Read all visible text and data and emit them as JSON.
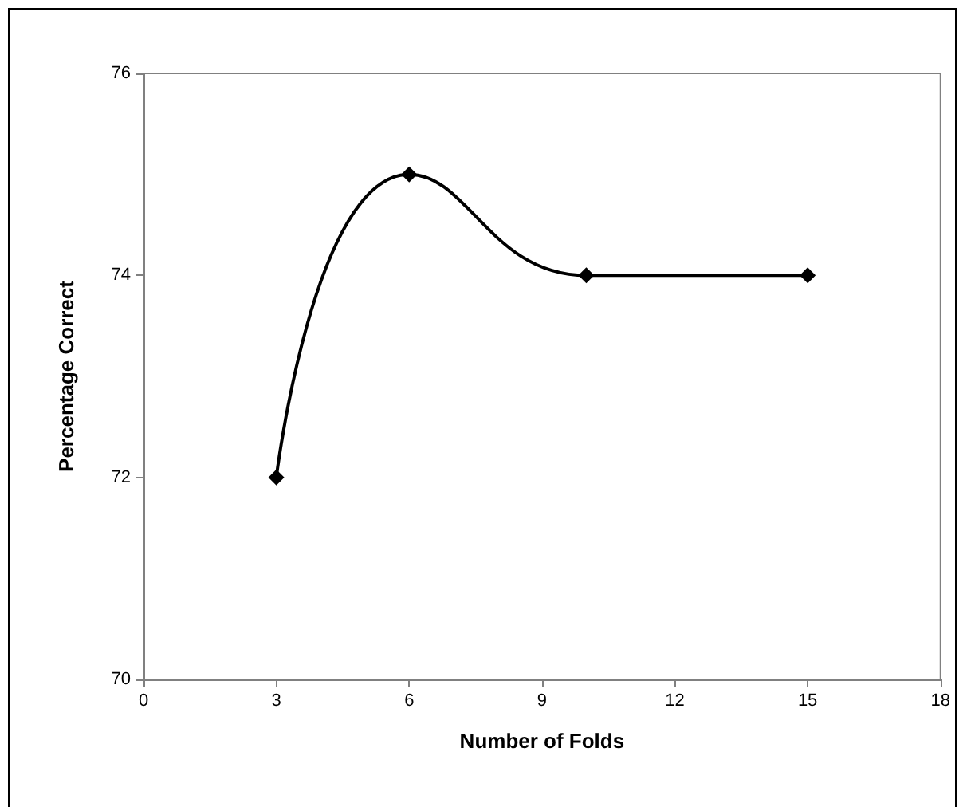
{
  "chart_data": {
    "type": "line",
    "xlabel": "Number of Folds",
    "ylabel": "Percentage Correct",
    "x": [
      3,
      6,
      10,
      15
    ],
    "values": [
      72,
      75,
      74,
      74
    ],
    "color": "#000000",
    "xlim": [
      0,
      18
    ],
    "xticks": [
      0,
      3,
      6,
      9,
      12,
      15,
      18
    ],
    "ylim": [
      70,
      76
    ],
    "yticks": [
      70,
      72,
      74,
      76
    ],
    "grid": false,
    "marker": "diamond",
    "line_style": "solid"
  }
}
